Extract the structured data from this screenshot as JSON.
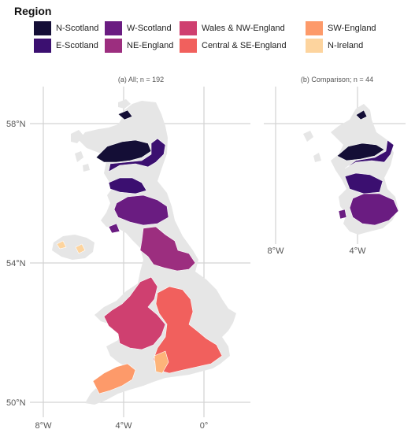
{
  "legend": {
    "title": "Region",
    "items": [
      {
        "label": "N-Scotland",
        "color": "#140e36"
      },
      {
        "label": "E-Scotland",
        "color": "#3b0f70"
      },
      {
        "label": "W-Scotland",
        "color": "#6a1c81"
      },
      {
        "label": "NE-England",
        "color": "#9c2e7f"
      },
      {
        "label": "Wales & NW-England",
        "color": "#cf4070"
      },
      {
        "label": "Central & SE-England",
        "color": "#f1605d"
      },
      {
        "label": "SW-England",
        "color": "#fd9a6a"
      },
      {
        "label": "N-Ireland",
        "color": "#fdd49e"
      }
    ]
  },
  "panels": {
    "all": {
      "title": "(a) All; n = 192",
      "y_ticks": [
        "58°N",
        "54°N",
        "50°N"
      ],
      "x_ticks": [
        "8°W",
        "4°W",
        "0°"
      ]
    },
    "comparison": {
      "title": "(b) Comparison; n = 44",
      "x_ticks": [
        "8°W",
        "4°W"
      ]
    }
  },
  "colors": {
    "land": "#e6e6e6",
    "grid": "#d3d3d3",
    "boundary": "#ffffff"
  }
}
